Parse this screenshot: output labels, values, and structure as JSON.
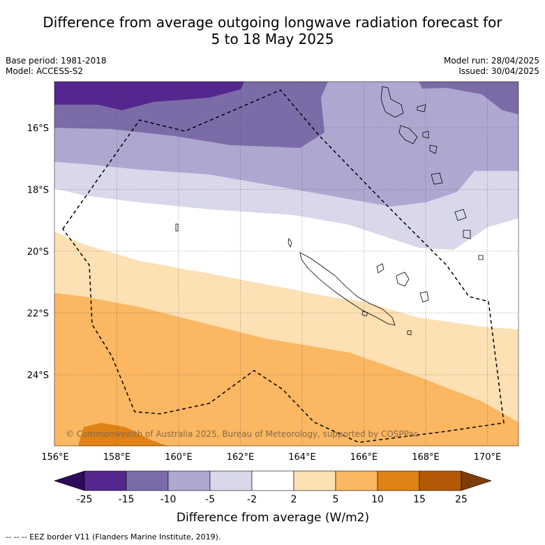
{
  "title_line1": "Difference from average outgoing longwave radiation forecast for",
  "title_line2": "5 to 18 May 2025",
  "base_period": "Base period: 1981-2018",
  "model": "Model: ACCESS-S2",
  "model_run": "Model run: 28/04/2025",
  "issued": "Issued: 30/04/2025",
  "copyright": "© Commonwealth of Australia 2025, Bureau of Meteorology, supported by COSPPac",
  "lon_labels": [
    "156°E",
    "158°E",
    "160°E",
    "162°E",
    "164°E",
    "166°E",
    "168°E",
    "170°E"
  ],
  "lat_labels": [
    "16°S",
    "18°S",
    "20°S",
    "22°S",
    "24°S"
  ],
  "legend": {
    "ticks": [
      "-25",
      "-15",
      "-10",
      "-5",
      "-2",
      "2",
      "5",
      "10",
      "15",
      "25"
    ],
    "colors": [
      "#2d0a5a",
      "#54278f",
      "#7b6ca8",
      "#aea8d1",
      "#d8d8ea",
      "#ffffff",
      "#fde0b4",
      "#fbb761",
      "#e08214",
      "#b35806",
      "#7f3b08"
    ],
    "label": "Difference from average (W/m2)"
  },
  "eez_note": "--  --  -- EEZ border V11 (Flanders Marine Institute, 2019)."
}
